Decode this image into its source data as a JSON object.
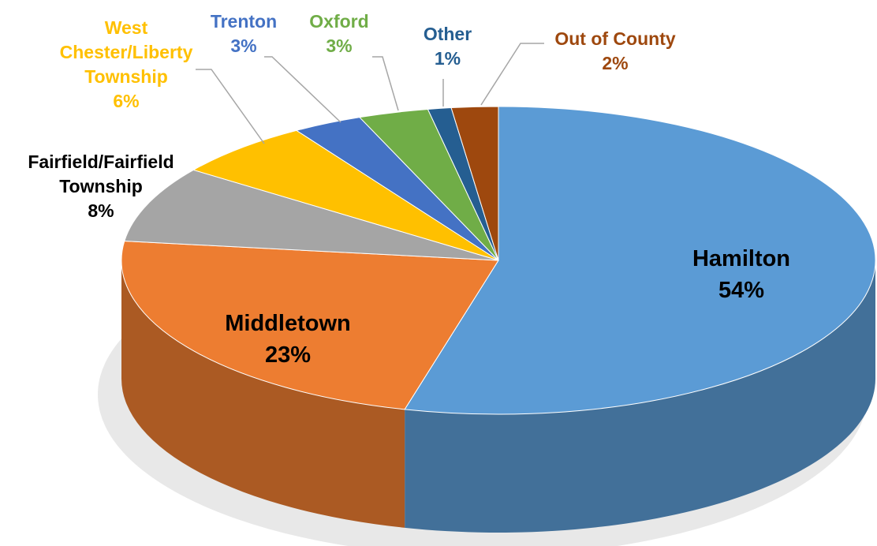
{
  "chart_data": {
    "type": "pie",
    "categories": [
      "Hamilton",
      "Middletown",
      "Fairfield/Fairfield Township",
      "West Chester/Liberty Township",
      "Trenton",
      "Oxford",
      "Other",
      "Out of County"
    ],
    "values": [
      54,
      23,
      8,
      6,
      3,
      3,
      1,
      2
    ],
    "value_labels": [
      "54%",
      "23%",
      "8%",
      "6%",
      "3%",
      "3%",
      "1%",
      "2%"
    ],
    "colors": [
      "#5b9bd5",
      "#ed7d31",
      "#a5a5a5",
      "#ffc000",
      "#4472c4",
      "#70ad47",
      "#255e91",
      "#9e480e"
    ]
  }
}
